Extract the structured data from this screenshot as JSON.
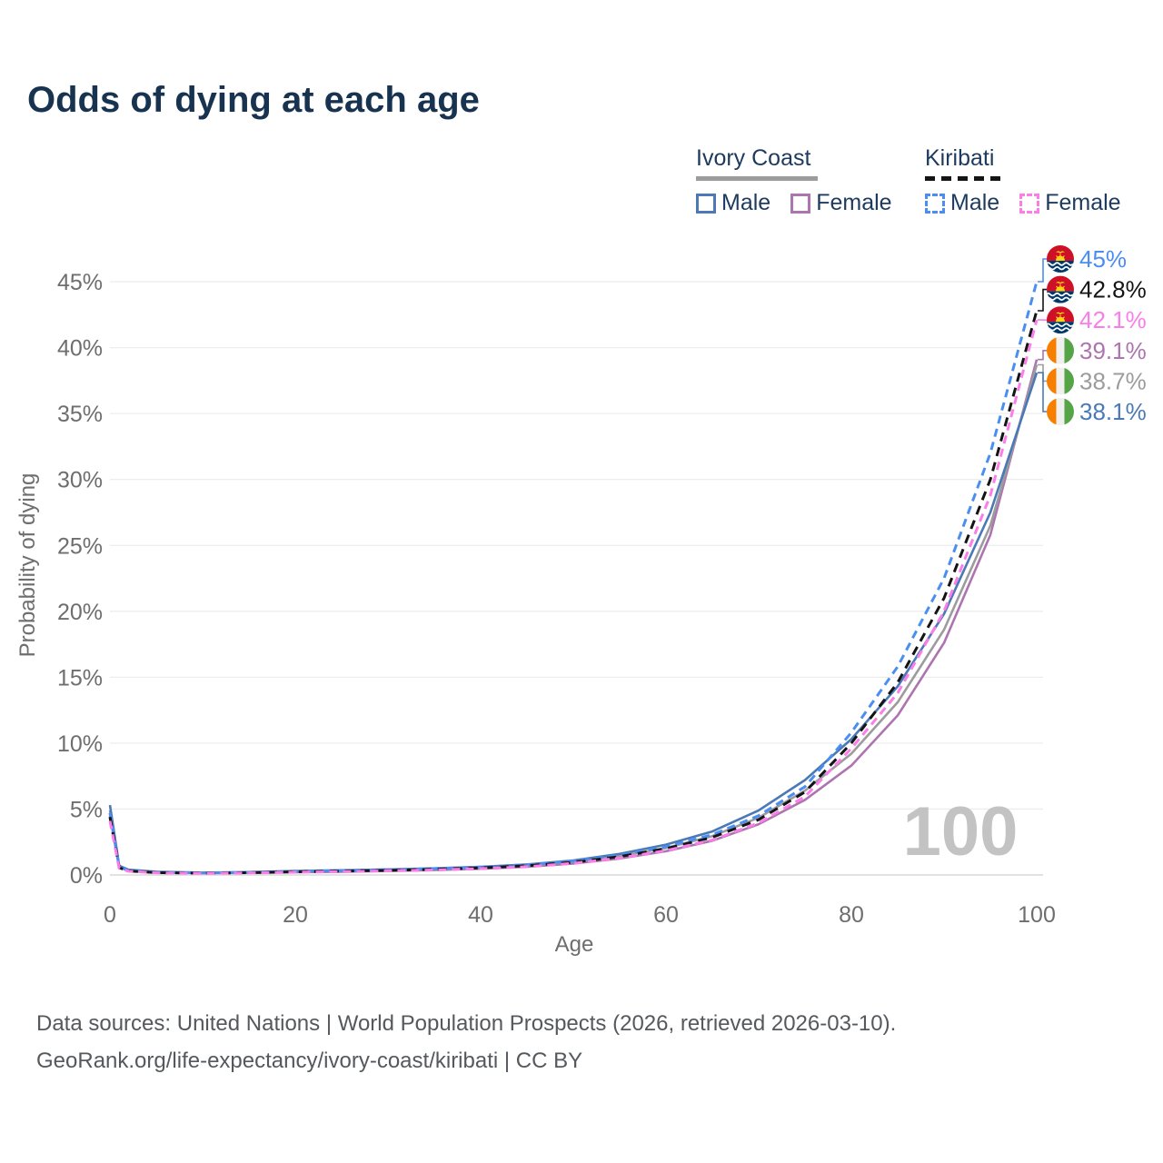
{
  "title": "Odds of dying at each age",
  "legend": {
    "groups": [
      {
        "name": "Ivory Coast",
        "line_style": "solid",
        "underline_color": "#9c9c9c",
        "items": [
          {
            "label": "Male",
            "color": "#4a79b5"
          },
          {
            "label": "Female",
            "color": "#ad74b0"
          }
        ]
      },
      {
        "name": "Kiribati",
        "line_style": "dashed",
        "underline_color": "#141414",
        "items": [
          {
            "label": "Male",
            "color": "#4b8ef2"
          },
          {
            "label": "Female",
            "color": "#fb7de9"
          }
        ]
      }
    ]
  },
  "watermark": "100",
  "chart_data": {
    "type": "line",
    "title": "Odds of dying at each age",
    "xlabel": "Age",
    "ylabel": "Probability of dying",
    "xlim": [
      0,
      100
    ],
    "ylim": [
      0,
      46
    ],
    "xticks": [
      0,
      20,
      40,
      60,
      80,
      100
    ],
    "yticks": [
      0,
      5,
      10,
      15,
      20,
      25,
      30,
      35,
      40,
      45
    ],
    "ytick_suffix": "%",
    "grid": "horizontal-only",
    "legend_position": "top-right",
    "x": [
      0,
      1,
      2,
      5,
      10,
      15,
      20,
      25,
      30,
      35,
      40,
      45,
      50,
      55,
      60,
      65,
      70,
      75,
      80,
      85,
      90,
      95,
      100
    ],
    "series": [
      {
        "name": "Kiribati Male",
        "country": "Kiribati",
        "sex": "Male",
        "color": "#4b8ef2",
        "dash": "dashed",
        "flag": "kiribati",
        "end_label": "45%",
        "end_value": 45.0,
        "values": [
          4.7,
          0.6,
          0.33,
          0.2,
          0.15,
          0.19,
          0.27,
          0.33,
          0.4,
          0.48,
          0.6,
          0.78,
          1.05,
          1.5,
          2.15,
          3.05,
          4.5,
          6.7,
          10.8,
          15.8,
          22.5,
          32.0,
          45.0
        ]
      },
      {
        "name": "Kiribati Both sexes",
        "country": "Kiribati",
        "sex": "Both",
        "color": "#141414",
        "dash": "dashed",
        "flag": "kiribati",
        "end_label": "42.8%",
        "end_value": 42.8,
        "values": [
          4.4,
          0.55,
          0.3,
          0.18,
          0.13,
          0.17,
          0.24,
          0.29,
          0.35,
          0.43,
          0.54,
          0.7,
          0.95,
          1.4,
          2.0,
          2.85,
          4.2,
          6.3,
          10.0,
          14.6,
          21.0,
          30.0,
          42.8
        ]
      },
      {
        "name": "Kiribati Female",
        "country": "Kiribati",
        "sex": "Female",
        "color": "#fb7de9",
        "dash": "dashed",
        "flag": "kiribati",
        "end_label": "42.1%",
        "end_value": 42.1,
        "values": [
          4.1,
          0.5,
          0.28,
          0.16,
          0.12,
          0.15,
          0.21,
          0.25,
          0.31,
          0.38,
          0.48,
          0.63,
          0.88,
          1.28,
          1.85,
          2.65,
          3.95,
          5.95,
          9.6,
          13.8,
          20.0,
          28.8,
          42.1
        ]
      },
      {
        "name": "Ivory Coast Female",
        "country": "Ivory Coast",
        "sex": "Female",
        "color": "#ad74b0",
        "dash": "solid",
        "flag": "ivory-coast",
        "end_label": "39.1%",
        "end_value": 39.1,
        "values": [
          4.5,
          0.6,
          0.34,
          0.2,
          0.14,
          0.16,
          0.21,
          0.25,
          0.3,
          0.37,
          0.47,
          0.62,
          0.87,
          1.25,
          1.8,
          2.6,
          3.85,
          5.7,
          8.3,
          12.1,
          17.6,
          25.8,
          39.1
        ]
      },
      {
        "name": "Ivory Coast Both sexes",
        "country": "Ivory Coast",
        "sex": "Both",
        "color": "#9c9c9c",
        "dash": "solid",
        "flag": "ivory-coast",
        "end_label": "38.7%",
        "end_value": 38.7,
        "values": [
          4.9,
          0.65,
          0.37,
          0.22,
          0.16,
          0.19,
          0.26,
          0.31,
          0.36,
          0.44,
          0.55,
          0.72,
          1.0,
          1.45,
          2.05,
          2.95,
          4.35,
          6.4,
          9.2,
          13.1,
          18.6,
          26.5,
          38.7
        ]
      },
      {
        "name": "Ivory Coast Male",
        "country": "Ivory Coast",
        "sex": "Male",
        "color": "#4a79b5",
        "dash": "solid",
        "flag": "ivory-coast",
        "end_label": "38.1%",
        "end_value": 38.1,
        "values": [
          5.3,
          0.7,
          0.4,
          0.25,
          0.18,
          0.22,
          0.3,
          0.36,
          0.42,
          0.5,
          0.62,
          0.8,
          1.1,
          1.6,
          2.3,
          3.3,
          4.9,
          7.2,
          10.3,
          14.3,
          19.8,
          27.5,
          38.1
        ]
      }
    ]
  },
  "footer": {
    "line1": "Data sources: United Nations | World Population Prospects (2026, retrieved 2026-03-10).",
    "line2": "GeoRank.org/life-expectancy/ivory-coast/kiribati | CC BY"
  },
  "colors": {
    "title_text": "#17334f",
    "legend_text": "#1d3a5f",
    "axis_text": "#6e6e6e",
    "gridline": "#ededed",
    "zero_line": "#d9d9d9",
    "watermark": "#c3c3c3",
    "footer_text": "#55595d"
  }
}
